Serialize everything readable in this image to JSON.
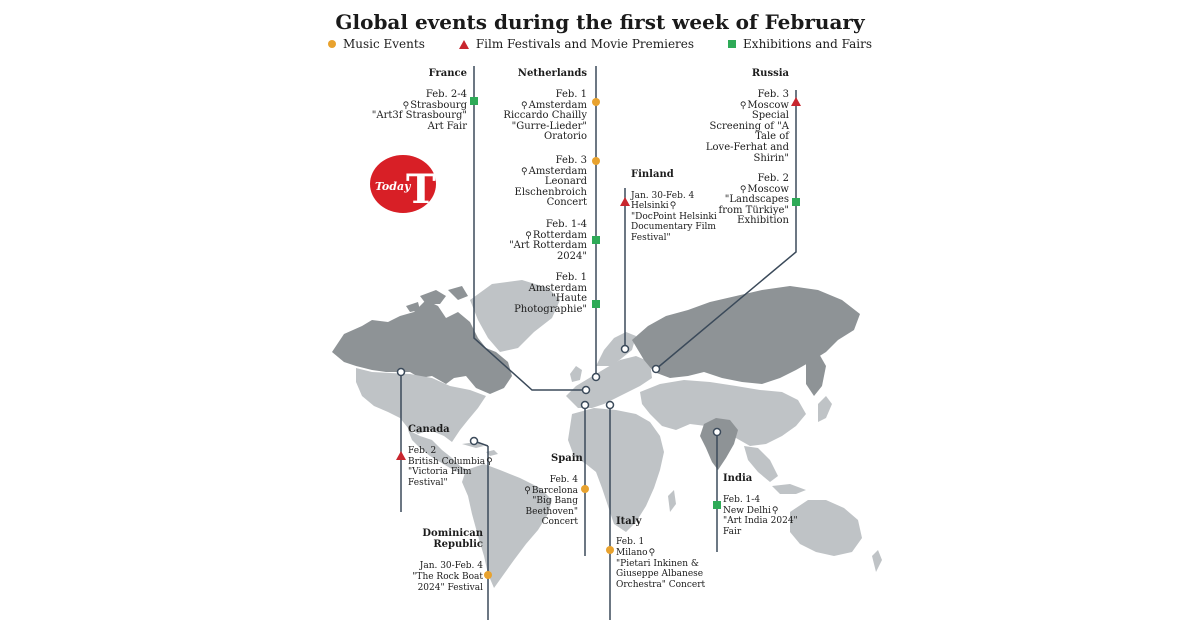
{
  "title": "Global events during the first week of February",
  "legend": {
    "music": "Music Events",
    "film": "Film Festivals and Movie Premieres",
    "exhibition": "Exhibitions and Fairs"
  },
  "logo": {
    "text_today": "Today",
    "text_t": "T"
  },
  "colors": {
    "music": "#e8a22e",
    "film": "#c8262e",
    "exhibition": "#2eaa57",
    "land": "#bfc3c6",
    "land_highlight": "#8e9396",
    "line": "#3b4a5a",
    "logo_red": "#d81f26"
  },
  "countries": {
    "france": "France",
    "netherlands": "Netherlands",
    "russia": "Russia",
    "finland": "Finland",
    "canada": "Canada",
    "spain": "Spain",
    "italy": "Italy",
    "india": "India",
    "dominican": "Dominican Republic"
  },
  "events": {
    "france_1": {
      "date": "Feb. 2-4",
      "place": "Strasbourg",
      "l1": "\"Art3f Strasbourg\"",
      "l2": "Art Fair",
      "type": "exhibition"
    },
    "nl_1": {
      "date": "Feb. 1",
      "place": "Amsterdam",
      "l1": "Riccardo Chailly",
      "l2": "\"Gurre-Lieder\"",
      "l3": "Oratorio",
      "type": "music"
    },
    "nl_2": {
      "date": "Feb. 3",
      "place": "Amsterdam",
      "l1": "Leonard",
      "l2": "Elschenbroich",
      "l3": "Concert",
      "type": "music"
    },
    "nl_3": {
      "date": "Feb. 1-4",
      "place": "Rotterdam",
      "l1": "\"Art Rotterdam",
      "l2": "2024\"",
      "type": "exhibition"
    },
    "nl_4": {
      "date": "Feb. 1",
      "place": "Amsterdam",
      "l1": "\"Haute",
      "l2": "Photographie\"",
      "type": "exhibition"
    },
    "ru_1": {
      "date": "Feb. 3",
      "place": "Moscow",
      "l1": "Special",
      "l2": "Screening of \"A",
      "l3": "Tale of",
      "l4": "Love-Ferhat and",
      "l5": "Shirin\"",
      "type": "film"
    },
    "ru_2": {
      "date": "Feb. 2",
      "place": "Moscow",
      "l1": "\"Landscapes",
      "l2": "from Türkiye\"",
      "l3": "Exhibition",
      "type": "exhibition"
    },
    "fi_1": {
      "date": "Jan. 30-Feb. 4",
      "place": "Helsinki",
      "l1": "\"DocPoint Helsinki",
      "l2": "Documentary Film",
      "l3": "Festival\"",
      "type": "film"
    },
    "ca_1": {
      "date": "Feb. 2",
      "place": "British Columbia",
      "l1": "\"Victoria Film",
      "l2": "Festival\"",
      "type": "film"
    },
    "es_1": {
      "date": "Feb. 4",
      "place": "Barcelona",
      "l1": "\"Big Bang",
      "l2": "Beethoven\"",
      "l3": "Concert",
      "type": "music"
    },
    "it_1": {
      "date": "Feb. 1",
      "place": "Milano",
      "l1": "\"Pietari Inkinen &",
      "l2": "Giuseppe Albanese",
      "l3": "Orchestra\" Concert",
      "type": "music"
    },
    "in_1": {
      "date": "Feb. 1-4",
      "place": "New Delhi",
      "l1": "\"Art India 2024\"",
      "l2": "Fair",
      "type": "exhibition"
    },
    "do_1": {
      "date": "Jan. 30-Feb. 4",
      "l1": "\"The Rock Boat",
      "l2": "2024\" Festival",
      "type": "music"
    }
  }
}
